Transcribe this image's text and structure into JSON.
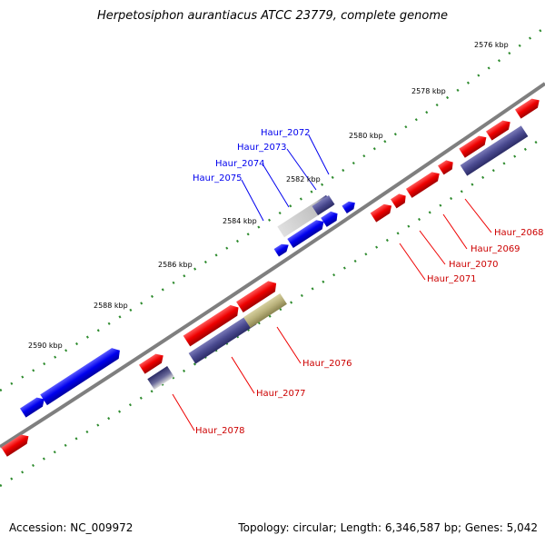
{
  "title": "Herpetosiphon aurantiacus ATCC 23779, complete genome",
  "footer": {
    "accession": "Accession: NC_009972",
    "info": "Topology: circular; Length: 6,346,587 bp; Genes: 5,042"
  },
  "scale_labels": [
    "2576 kbp",
    "2578 kbp",
    "2580 kbp",
    "2582 kbp",
    "2584 kbp",
    "2586 kbp",
    "2588 kbp",
    "2590 kbp"
  ],
  "gene_labels": {
    "Haur_2068": "Haur_2068",
    "Haur_2069": "Haur_2069",
    "Haur_2070": "Haur_2070",
    "Haur_2071": "Haur_2071",
    "Haur_2072": "Haur_2072",
    "Haur_2073": "Haur_2073",
    "Haur_2074": "Haur_2074",
    "Haur_2075": "Haur_2075",
    "Haur_2076": "Haur_2076",
    "Haur_2077": "Haur_2077",
    "Haur_2078": "Haur_2078"
  },
  "colors": {
    "forward_strand": "#0000ee",
    "reverse_strand": "#ee0000",
    "cds_feature": "#4a4a90",
    "pseudo_feature": "#b8b07a",
    "backbone": "#7f7f7f",
    "scale_dots": "#2e8b2e"
  }
}
